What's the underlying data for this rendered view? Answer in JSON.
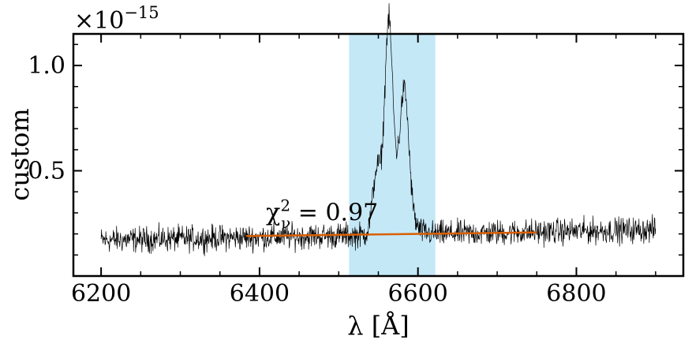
{
  "chart_data": {
    "type": "line",
    "xlabel": "λ [Å]",
    "ylabel": "custom",
    "offset_label": {
      "base": "×10",
      "exponent": "−15"
    },
    "xlim": [
      6165,
      6935
    ],
    "ylim": [
      0.0,
      1.15
    ],
    "x_ticks": [
      {
        "value": 6200,
        "label": "6200"
      },
      {
        "value": 6400,
        "label": "6400"
      },
      {
        "value": 6600,
        "label": "6600"
      },
      {
        "value": 6800,
        "label": "6800"
      }
    ],
    "y_ticks": [
      {
        "value": 0.5,
        "label": "0.5"
      },
      {
        "value": 1.0,
        "label": "1.0"
      }
    ],
    "x_minor_step": 50,
    "y_minor_step": 0.1,
    "highlight_band": {
      "x0": 6513,
      "x1": 6622,
      "color": "#c5e8f7"
    },
    "spectrum": {
      "color": "#000000",
      "x_start": 6200,
      "x_end": 6900,
      "x_step": 0.5,
      "continuum_start": 0.17,
      "continuum_end": 0.22,
      "noise_amplitude": 0.03,
      "peaks": [
        {
          "center": 6563,
          "height": 0.88,
          "width": 5
        },
        {
          "center": 6583,
          "height": 0.55,
          "width": 5.5
        },
        {
          "center": 6548,
          "height": 0.28,
          "width": 5
        },
        {
          "center": 6573,
          "height": 0.18,
          "width": 14
        }
      ]
    },
    "fit_line": {
      "color": "#d95f02",
      "x": [
        6383,
        6750
      ],
      "y": [
        0.19,
        0.207
      ]
    },
    "annotation": {
      "base": "χ",
      "sup": "2",
      "sub": "ν",
      "rest": " = 0.97",
      "x": 6479,
      "y": 0.265
    }
  }
}
